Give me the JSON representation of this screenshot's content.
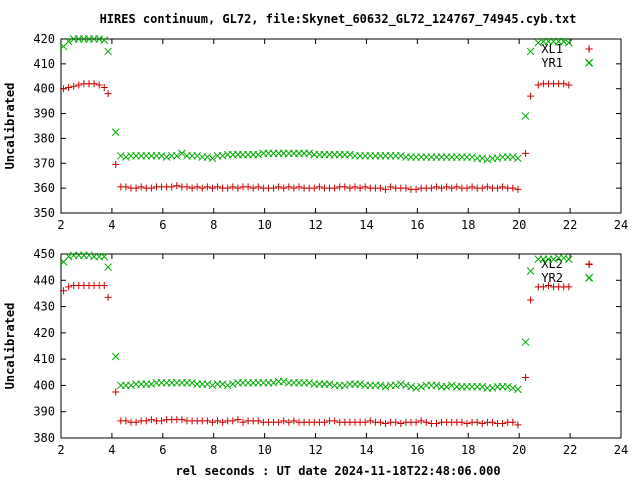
{
  "chart_title": "HIRES continuum, GL72, file:Skynet_60632_GL72_124767_74945.cyb.txt",
  "x_axis_label": "rel seconds : UT date 2024-11-18T22:48:06.000",
  "colors": {
    "left_series": "#cc0000",
    "right_series": "#00aa00",
    "axes": "#000000"
  },
  "chart_data": [
    {
      "type": "scatter",
      "title": "HIRES continuum, GL72, file:Skynet_60632_GL72_124767_74945.cyb.txt",
      "ylabel": "Uncalibrated",
      "xlabel": "",
      "xlim": [
        2,
        24
      ],
      "ylim": [
        350,
        420
      ],
      "xticks": [
        2,
        4,
        6,
        8,
        10,
        12,
        14,
        16,
        18,
        20,
        22,
        24
      ],
      "yticks": [
        350,
        360,
        370,
        380,
        390,
        400,
        410,
        420
      ],
      "legend_position": "top-right",
      "series": [
        {
          "name": "XL1",
          "marker": "+",
          "x": [
            2.1,
            2.3,
            2.5,
            2.7,
            2.9,
            3.1,
            3.3,
            3.5,
            3.7,
            3.85,
            4.15,
            4.35,
            4.55,
            4.75,
            4.95,
            5.15,
            5.35,
            5.55,
            5.75,
            5.95,
            6.15,
            6.35,
            6.55,
            6.75,
            6.95,
            7.15,
            7.35,
            7.55,
            7.75,
            7.95,
            8.15,
            8.35,
            8.55,
            8.75,
            8.95,
            9.15,
            9.35,
            9.55,
            9.75,
            9.95,
            10.15,
            10.35,
            10.55,
            10.75,
            10.95,
            11.15,
            11.35,
            11.55,
            11.75,
            11.95,
            12.15,
            12.35,
            12.55,
            12.75,
            12.95,
            13.15,
            13.35,
            13.55,
            13.75,
            13.95,
            14.15,
            14.35,
            14.55,
            14.75,
            14.95,
            15.15,
            15.35,
            15.55,
            15.75,
            15.95,
            16.15,
            16.35,
            16.55,
            16.75,
            16.95,
            17.15,
            17.35,
            17.55,
            17.75,
            17.95,
            18.15,
            18.35,
            18.55,
            18.75,
            18.95,
            19.15,
            19.35,
            19.55,
            19.75,
            19.95,
            20.25,
            20.45,
            20.75,
            20.95,
            21.15,
            21.35,
            21.55,
            21.75,
            21.95,
            22.75
          ],
          "y": [
            400,
            400.5,
            401,
            401.5,
            402,
            402,
            402,
            401.5,
            400.5,
            398,
            369.5,
            360.5,
            360.5,
            360,
            360,
            360.5,
            360,
            360,
            360.5,
            360.5,
            360.5,
            360.5,
            361,
            360.5,
            360.5,
            360,
            360.5,
            360,
            360.5,
            360,
            360.5,
            360,
            360,
            360.5,
            360,
            360.5,
            360.5,
            360,
            360.5,
            360,
            360,
            360,
            360.5,
            360,
            360.5,
            360,
            360.5,
            360,
            360,
            360,
            360.5,
            360,
            360,
            360,
            360.5,
            360.5,
            360,
            360.5,
            360,
            360.5,
            360,
            360,
            360,
            359.5,
            360.5,
            360,
            360,
            360,
            359.5,
            359.5,
            360,
            360,
            360,
            360.5,
            360,
            360.5,
            360,
            360.5,
            360,
            360,
            360.5,
            360,
            360,
            360.5,
            360,
            360,
            360.5,
            360,
            360,
            359.5,
            374,
            397,
            401.5,
            402,
            402,
            402,
            402,
            402,
            401.5,
            416
          ]
        },
        {
          "name": "YR1",
          "marker": "x",
          "x": [
            2.1,
            2.3,
            2.5,
            2.7,
            2.9,
            3.1,
            3.3,
            3.5,
            3.7,
            3.85,
            4.15,
            4.35,
            4.55,
            4.75,
            4.95,
            5.15,
            5.35,
            5.55,
            5.75,
            5.95,
            6.15,
            6.35,
            6.55,
            6.75,
            6.95,
            7.15,
            7.35,
            7.55,
            7.75,
            7.95,
            8.15,
            8.35,
            8.55,
            8.75,
            8.95,
            9.15,
            9.35,
            9.55,
            9.75,
            9.95,
            10.15,
            10.35,
            10.55,
            10.75,
            10.95,
            11.15,
            11.35,
            11.55,
            11.75,
            11.95,
            12.15,
            12.35,
            12.55,
            12.75,
            12.95,
            13.15,
            13.35,
            13.55,
            13.75,
            13.95,
            14.15,
            14.35,
            14.55,
            14.75,
            14.95,
            15.15,
            15.35,
            15.55,
            15.75,
            15.95,
            16.15,
            16.35,
            16.55,
            16.75,
            16.95,
            17.15,
            17.35,
            17.55,
            17.75,
            17.95,
            18.15,
            18.35,
            18.55,
            18.75,
            18.95,
            19.15,
            19.35,
            19.55,
            19.75,
            19.95,
            20.25,
            20.45,
            20.75,
            20.95,
            21.15,
            21.35,
            21.55,
            21.75,
            21.95,
            22.75
          ],
          "y": [
            417,
            419,
            420,
            420,
            420,
            420,
            420,
            420,
            419.5,
            415,
            382.5,
            373,
            372.5,
            373,
            373,
            373,
            373,
            373,
            373,
            373,
            372.5,
            373,
            373,
            374,
            373,
            373,
            373,
            372.5,
            372.5,
            372,
            373,
            373,
            373.5,
            373.5,
            373.5,
            373.5,
            373.5,
            373.5,
            373.5,
            374,
            374,
            374,
            374,
            374,
            374,
            374,
            374,
            374,
            374,
            373.5,
            373.5,
            373.5,
            373.5,
            373.5,
            373.5,
            373.5,
            373.5,
            373,
            373,
            373,
            373,
            373,
            373,
            373,
            373,
            373,
            373,
            372.5,
            372.5,
            372.5,
            372.5,
            372.5,
            372.5,
            372.5,
            372.5,
            372.5,
            372.5,
            372.5,
            372.5,
            372.5,
            372.5,
            372,
            372,
            371.5,
            372,
            372,
            372.5,
            372.5,
            372.5,
            372,
            389,
            415,
            418.5,
            419,
            419,
            419,
            419,
            419,
            418.5,
            410.5
          ]
        }
      ]
    },
    {
      "type": "scatter",
      "title": "",
      "ylabel": "Uncalibrated",
      "xlabel": "rel seconds : UT date 2024-11-18T22:48:06.000",
      "xlim": [
        2,
        24
      ],
      "ylim": [
        380,
        450
      ],
      "xticks": [
        2,
        4,
        6,
        8,
        10,
        12,
        14,
        16,
        18,
        20,
        22,
        24
      ],
      "yticks": [
        380,
        390,
        400,
        410,
        420,
        430,
        440,
        450
      ],
      "legend_position": "top-right",
      "series": [
        {
          "name": "XL2",
          "marker": "+",
          "x": [
            2.1,
            2.3,
            2.5,
            2.7,
            2.9,
            3.1,
            3.3,
            3.5,
            3.7,
            3.85,
            4.15,
            4.35,
            4.55,
            4.75,
            4.95,
            5.15,
            5.35,
            5.55,
            5.75,
            5.95,
            6.15,
            6.35,
            6.55,
            6.75,
            6.95,
            7.15,
            7.35,
            7.55,
            7.75,
            7.95,
            8.15,
            8.35,
            8.55,
            8.75,
            8.95,
            9.15,
            9.35,
            9.55,
            9.75,
            9.95,
            10.15,
            10.35,
            10.55,
            10.75,
            10.95,
            11.15,
            11.35,
            11.55,
            11.75,
            11.95,
            12.15,
            12.35,
            12.55,
            12.75,
            12.95,
            13.15,
            13.35,
            13.55,
            13.75,
            13.95,
            14.15,
            14.35,
            14.55,
            14.75,
            14.95,
            15.15,
            15.35,
            15.55,
            15.75,
            15.95,
            16.15,
            16.35,
            16.55,
            16.75,
            16.95,
            17.15,
            17.35,
            17.55,
            17.75,
            17.95,
            18.15,
            18.35,
            18.55,
            18.75,
            18.95,
            19.15,
            19.35,
            19.55,
            19.75,
            19.95,
            20.25,
            20.45,
            20.75,
            20.95,
            21.15,
            21.35,
            21.55,
            21.75,
            21.95,
            22.75
          ],
          "y": [
            436,
            437.5,
            438,
            438,
            438,
            438,
            438,
            438,
            438,
            433.5,
            397.5,
            386.5,
            386.5,
            386,
            386,
            386.5,
            386.5,
            387,
            386.5,
            386.5,
            387,
            387,
            387,
            387,
            386.5,
            386.5,
            386.5,
            386.5,
            386.5,
            386,
            386.5,
            386,
            386.5,
            386.5,
            387,
            386,
            386.5,
            386.5,
            386.5,
            386,
            386,
            386,
            386,
            386.5,
            386,
            386.5,
            386,
            386,
            386,
            386,
            386,
            386,
            386.5,
            386.5,
            386,
            386,
            386,
            386,
            386,
            386,
            386.5,
            386,
            386,
            385.5,
            386,
            386,
            385.5,
            386,
            386,
            386,
            386.5,
            386,
            385.5,
            385.5,
            386,
            386,
            386,
            386,
            386,
            385.5,
            386,
            386,
            385.5,
            386,
            386,
            385.5,
            385.5,
            386,
            386,
            385,
            403,
            432.5,
            437.5,
            437.5,
            438,
            437.5,
            437.5,
            437.5,
            437.5,
            446
          ]
        },
        {
          "name": "YR2",
          "marker": "x",
          "x": [
            2.1,
            2.3,
            2.5,
            2.7,
            2.9,
            3.1,
            3.3,
            3.5,
            3.7,
            3.85,
            4.15,
            4.35,
            4.55,
            4.75,
            4.95,
            5.15,
            5.35,
            5.55,
            5.75,
            5.95,
            6.15,
            6.35,
            6.55,
            6.75,
            6.95,
            7.15,
            7.35,
            7.55,
            7.75,
            7.95,
            8.15,
            8.35,
            8.55,
            8.75,
            8.95,
            9.15,
            9.35,
            9.55,
            9.75,
            9.95,
            10.15,
            10.35,
            10.55,
            10.75,
            10.95,
            11.15,
            11.35,
            11.55,
            11.75,
            11.95,
            12.15,
            12.35,
            12.55,
            12.75,
            12.95,
            13.15,
            13.35,
            13.55,
            13.75,
            13.95,
            14.15,
            14.35,
            14.55,
            14.75,
            14.95,
            15.15,
            15.35,
            15.55,
            15.75,
            15.95,
            16.15,
            16.35,
            16.55,
            16.75,
            16.95,
            17.15,
            17.35,
            17.55,
            17.75,
            17.95,
            18.15,
            18.35,
            18.55,
            18.75,
            18.95,
            19.15,
            19.35,
            19.55,
            19.75,
            19.95,
            20.25,
            20.45,
            20.75,
            20.95,
            21.15,
            21.35,
            21.55,
            21.75,
            21.95,
            22.75
          ],
          "y": [
            447,
            449,
            449.5,
            449.5,
            449.5,
            449.5,
            449,
            449,
            449,
            445,
            411,
            400,
            400,
            400,
            400.5,
            400.5,
            400.5,
            400.5,
            401,
            401,
            401,
            401,
            401,
            401,
            401,
            401,
            400.5,
            400.5,
            400.5,
            400,
            400.5,
            400.5,
            400,
            400.5,
            401,
            401,
            401,
            401,
            401,
            401,
            401,
            401,
            401.5,
            401.5,
            401,
            401,
            401,
            401,
            401,
            400.5,
            400.5,
            400.5,
            400.5,
            400,
            400,
            400,
            400.5,
            400.5,
            400.5,
            400,
            400,
            400,
            400,
            399.5,
            400,
            400,
            400.5,
            400,
            399.5,
            399,
            399.5,
            400,
            400,
            400,
            399.5,
            399.5,
            400,
            399.5,
            399.5,
            399.5,
            399.5,
            399.5,
            399.5,
            399,
            399,
            399.5,
            399.5,
            399.5,
            399,
            398.5,
            416.5,
            443.5,
            448,
            448,
            448,
            448,
            448.5,
            448.5,
            448,
            441
          ]
        }
      ]
    }
  ]
}
